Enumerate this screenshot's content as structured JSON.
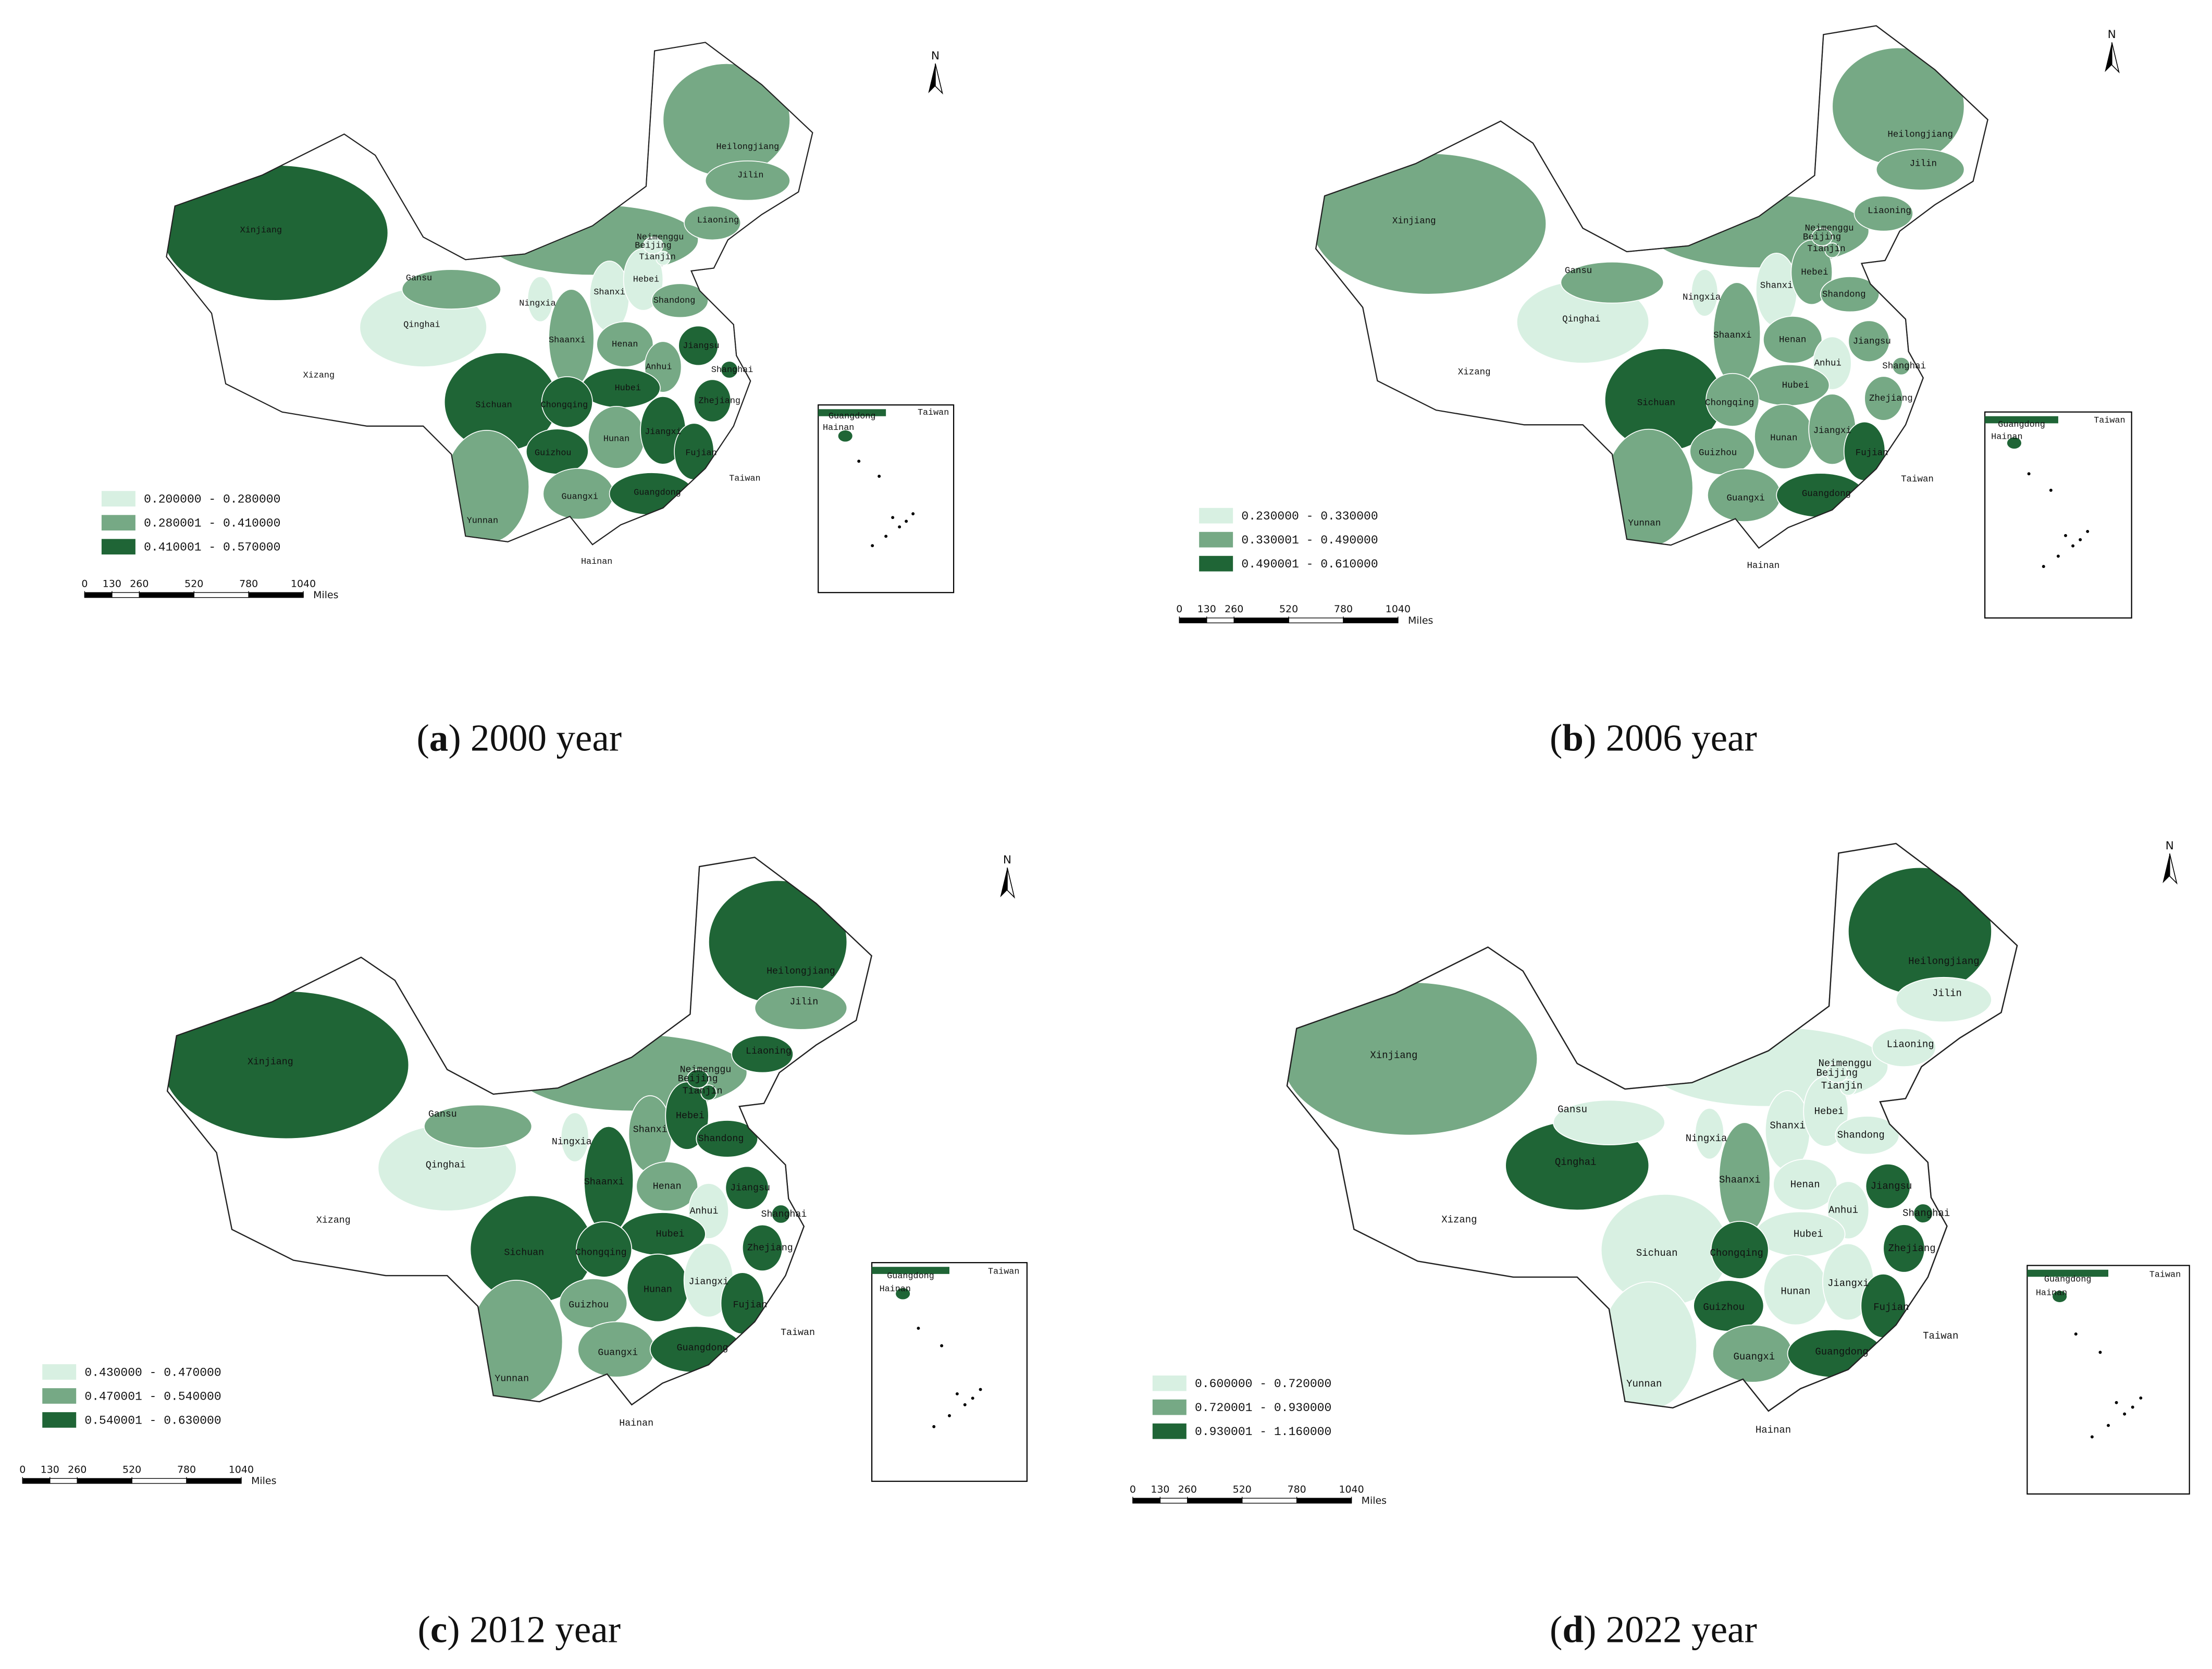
{
  "province_names": [
    "Xinjiang",
    "Xizang",
    "Qinghai",
    "Gansu",
    "Neimenggu",
    "Heilongjiang",
    "Jilin",
    "Liaoning",
    "Shanxi",
    "Hebei",
    "Beijing",
    "Tianjin",
    "Shandong",
    "Ningxia",
    "Shaanxi",
    "Henan",
    "Jiangsu",
    "Anhui",
    "Shanghai",
    "Hubei",
    "Zhejiang",
    "Sichuan",
    "Chongqing",
    "Guizhou",
    "Hunan",
    "Jiangxi",
    "Fujian",
    "Yunnan",
    "Guangxi",
    "Guangdong",
    "Taiwan",
    "Hainan"
  ],
  "class_colors": [
    "#d8f0e2",
    "#76a985",
    "#1f6536"
  ],
  "north": "N",
  "scale_ticks": [
    0,
    130,
    260,
    520,
    780,
    1040
  ],
  "scale_unit": "Miles",
  "inset_labels": [
    "Guangdong",
    "Hainan",
    "Taiwan"
  ],
  "panels": [
    {
      "caption": [
        "(",
        "a",
        ") 2000 year"
      ],
      "legend": [
        "0.200000 - 0.280000",
        "0.280001 - 0.410000",
        "0.410001 - 0.570000"
      ],
      "classes": [
        2,
        null,
        0,
        1,
        1,
        1,
        1,
        1,
        0,
        0,
        0,
        0,
        1,
        0,
        1,
        1,
        2,
        1,
        2,
        2,
        2,
        2,
        2,
        2,
        1,
        2,
        2,
        1,
        1,
        2,
        null,
        2
      ]
    },
    {
      "caption": [
        "(",
        "b",
        ") 2006 year"
      ],
      "legend": [
        "0.230000 - 0.330000",
        "0.330001 - 0.490000",
        "0.490001 - 0.610000"
      ],
      "classes": [
        1,
        null,
        0,
        1,
        1,
        1,
        1,
        1,
        0,
        1,
        1,
        1,
        1,
        0,
        1,
        1,
        1,
        0,
        1,
        1,
        1,
        2,
        1,
        1,
        1,
        1,
        2,
        1,
        1,
        2,
        null,
        2
      ]
    },
    {
      "caption": [
        "(",
        "c",
        ") 2012 year"
      ],
      "legend": [
        "0.430000 - 0.470000",
        "0.470001 - 0.540000",
        "0.540001 - 0.630000"
      ],
      "classes": [
        2,
        null,
        0,
        1,
        1,
        2,
        1,
        2,
        1,
        2,
        2,
        2,
        2,
        0,
        2,
        1,
        2,
        0,
        2,
        2,
        2,
        2,
        2,
        1,
        2,
        0,
        2,
        1,
        1,
        2,
        null,
        2
      ]
    },
    {
      "caption": [
        "(",
        "d",
        ") 2022 year"
      ],
      "legend": [
        "0.600000 - 0.720000",
        "0.720001 - 0.930000",
        "0.930001 - 1.160000"
      ],
      "classes": [
        1,
        null,
        2,
        0,
        0,
        2,
        0,
        0,
        0,
        0,
        0,
        0,
        0,
        0,
        1,
        0,
        2,
        0,
        2,
        0,
        2,
        0,
        2,
        2,
        0,
        0,
        2,
        0,
        1,
        2,
        null,
        2
      ]
    }
  ]
}
